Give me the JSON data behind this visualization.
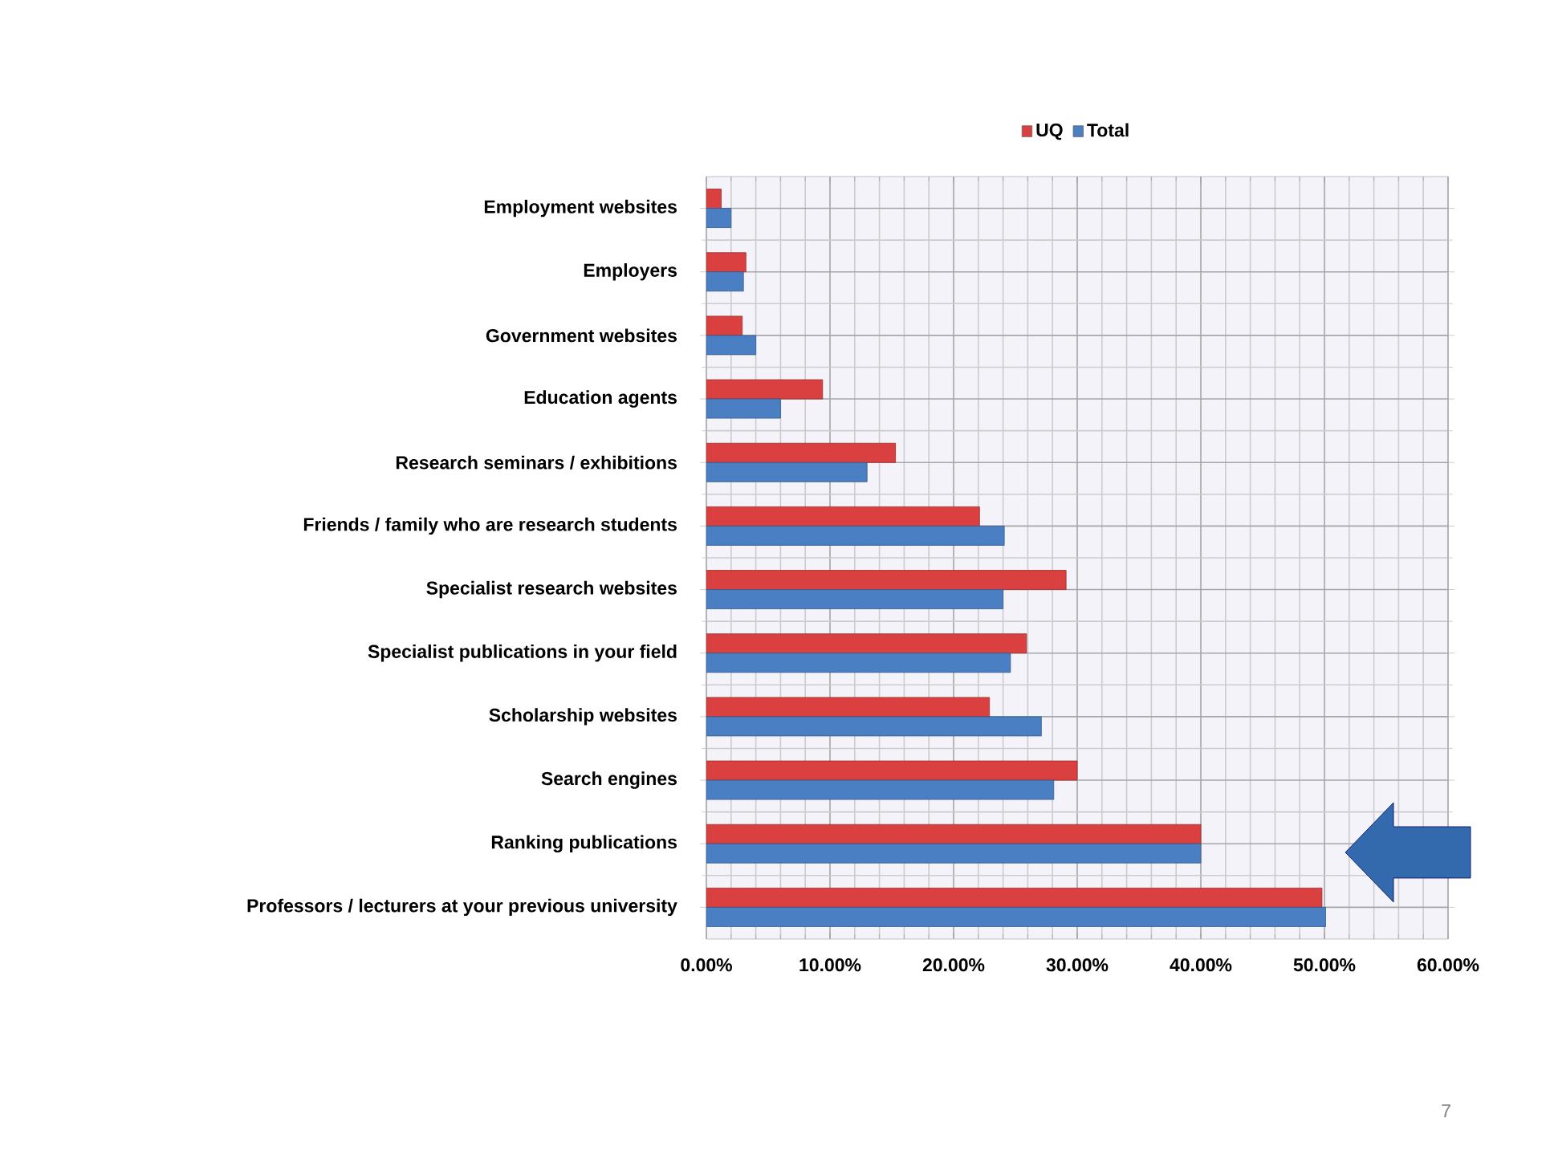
{
  "chart_data": {
    "type": "bar",
    "orientation": "horizontal",
    "categories": [
      "Employment websites",
      "Employers",
      "Government websites",
      "Education agents",
      "Research seminars / exhibitions",
      "Friends / family who are research students",
      "Specialist research websites",
      "Specialist publications in your field",
      "Scholarship websites",
      "Search engines",
      "Ranking publications",
      "Professors / lecturers at your previous university"
    ],
    "series": [
      {
        "name": "UQ",
        "color": "#d9403f",
        "values": [
          1.2,
          3.2,
          2.9,
          9.4,
          15.3,
          22.1,
          29.1,
          25.9,
          22.9,
          30.0,
          40.0,
          49.8
        ]
      },
      {
        "name": "Total",
        "color": "#4a7fc4",
        "values": [
          2.0,
          3.0,
          4.0,
          6.0,
          13.0,
          24.1,
          24.0,
          24.6,
          27.1,
          28.1,
          40.0,
          50.1
        ]
      }
    ],
    "xlim": [
      0,
      60
    ],
    "xticks": [
      {
        "value": 0,
        "label": "0.00%"
      },
      {
        "value": 10,
        "label": "10.00%"
      },
      {
        "value": 20,
        "label": "20.00%"
      },
      {
        "value": 30,
        "label": "30.00%"
      },
      {
        "value": 40,
        "label": "40.00%"
      },
      {
        "value": 50,
        "label": "50.00%"
      },
      {
        "value": 60,
        "label": "60.00%"
      }
    ],
    "grid": true,
    "legend": "top",
    "annotations": [
      "7"
    ]
  }
}
